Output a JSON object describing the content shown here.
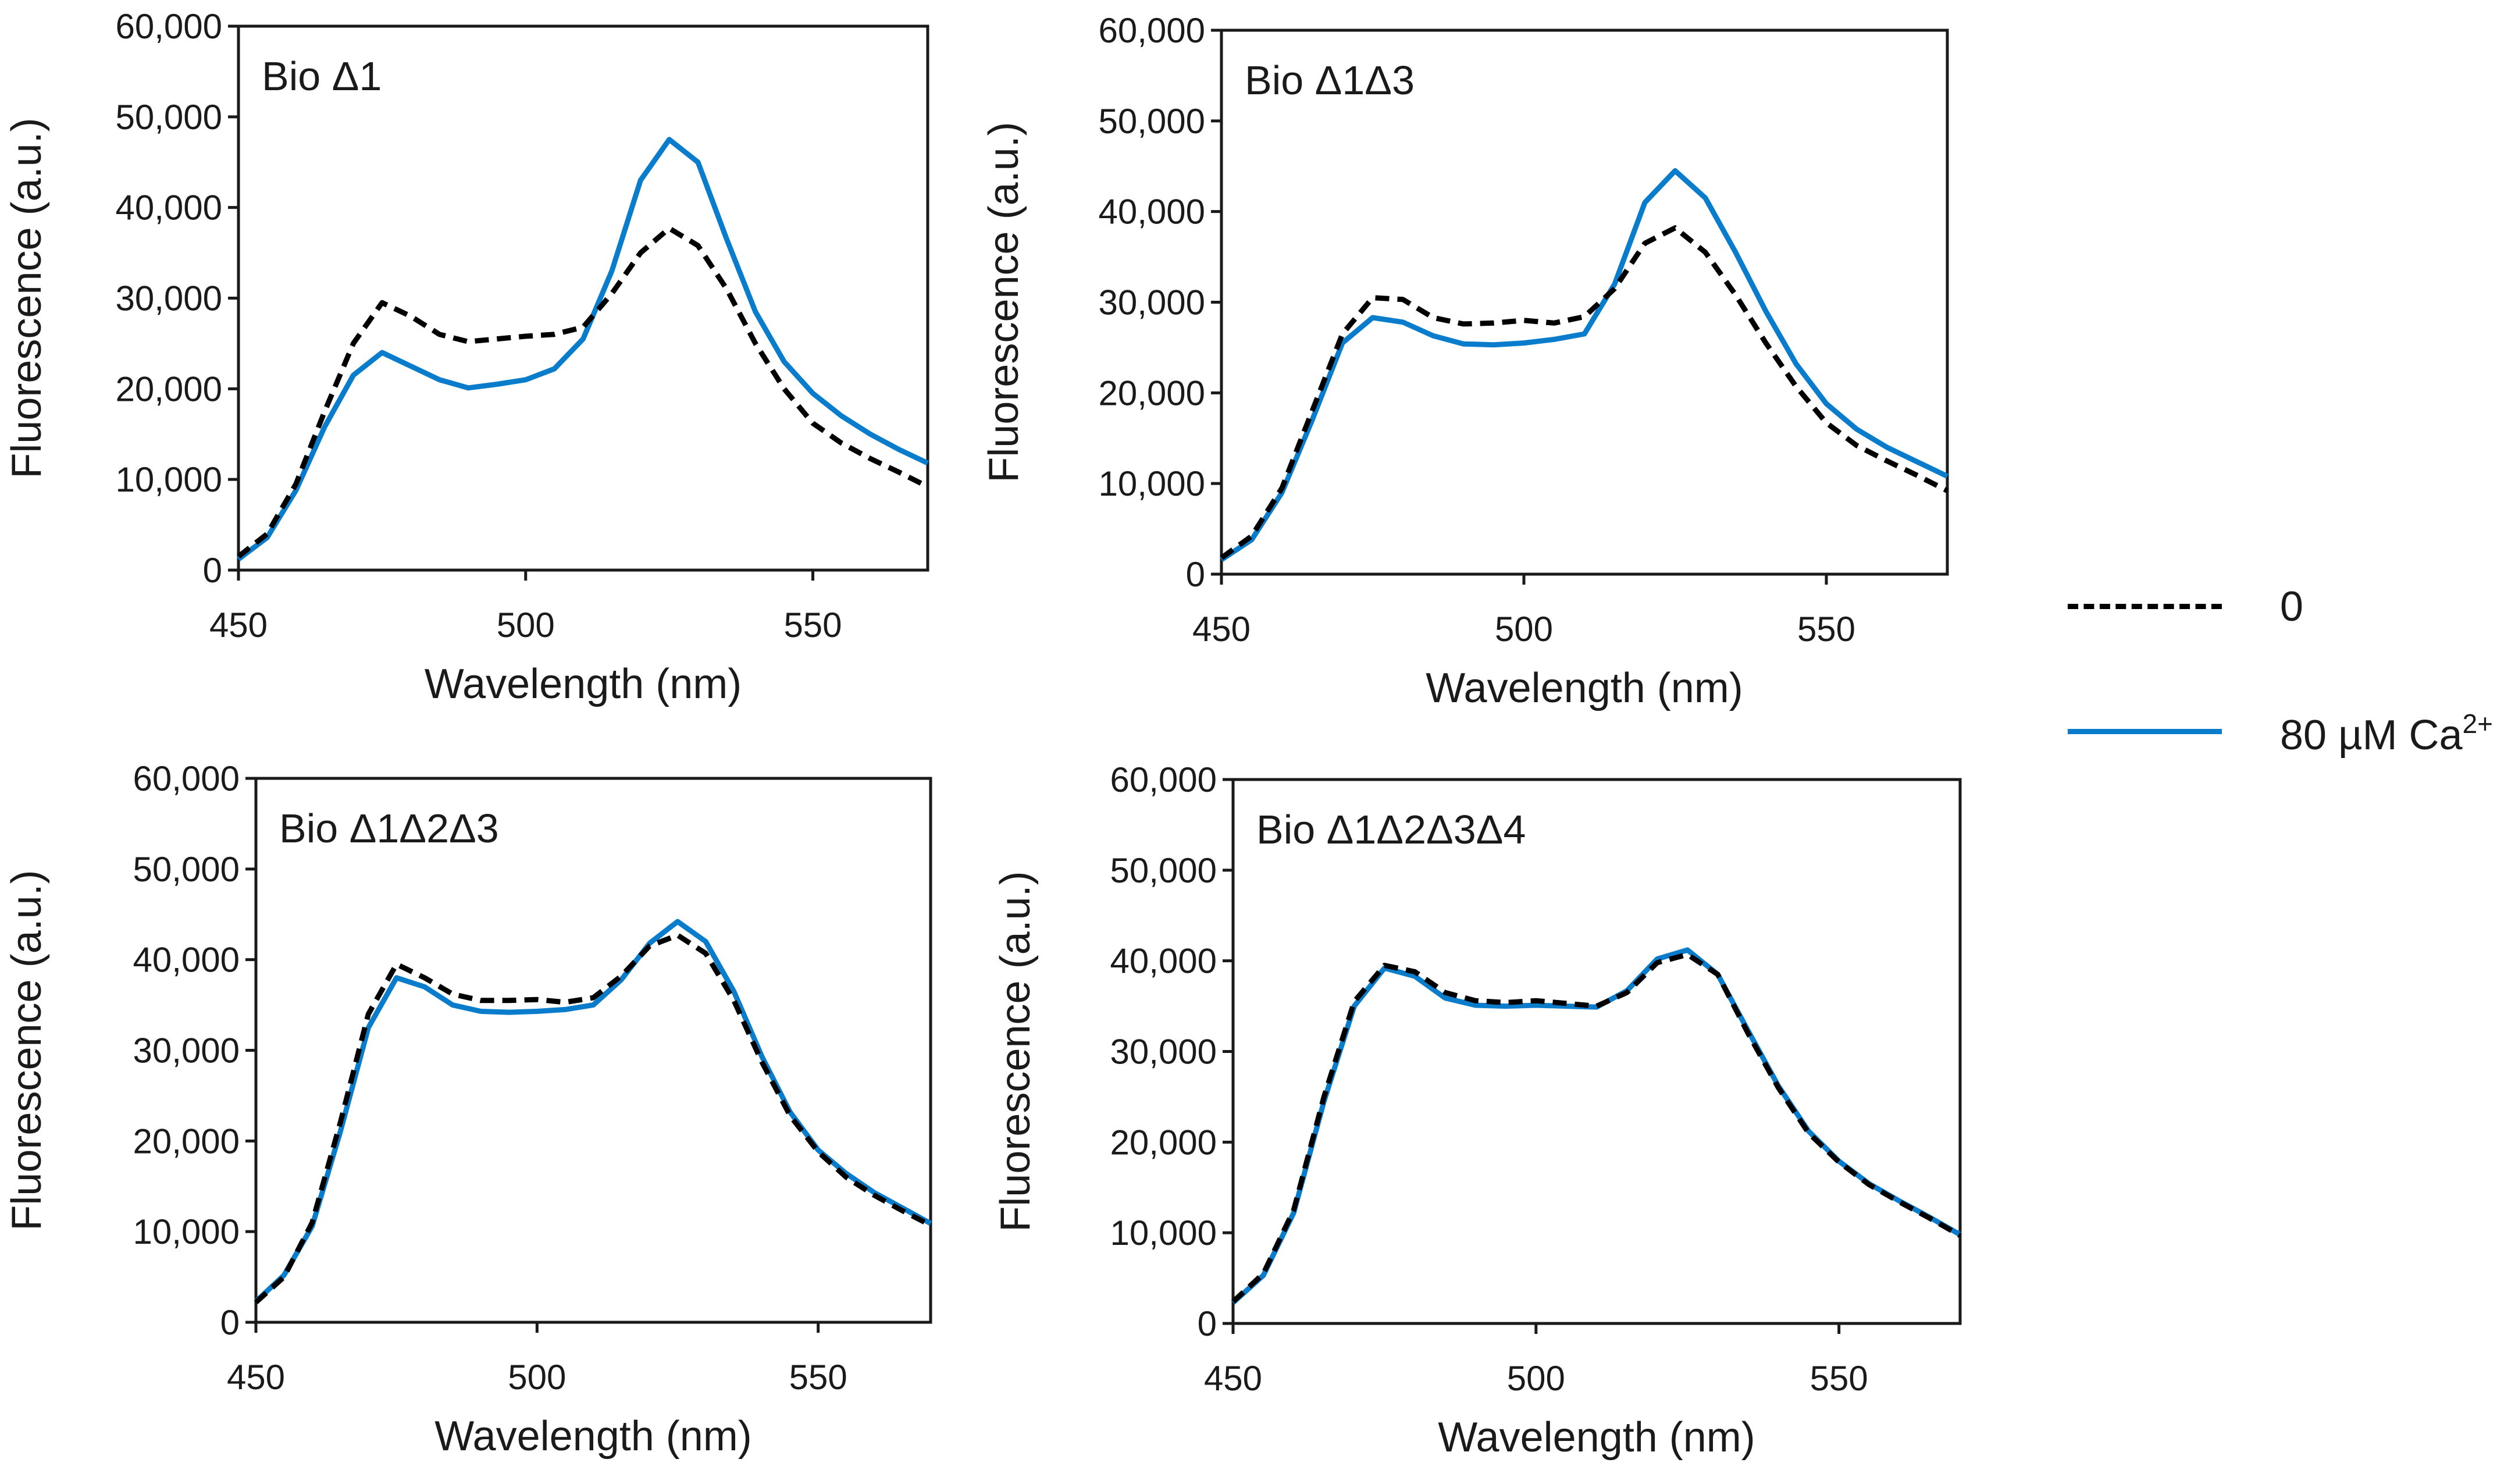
{
  "colors": {
    "solid_series": "#0a7ccc",
    "dashed_series": "#000000",
    "axis": "#1a1a1a"
  },
  "legend": {
    "entries": [
      {
        "label": "0",
        "style": "dashed"
      },
      {
        "label_main": "80 µM Ca",
        "label_sup": "2+",
        "style": "solid"
      }
    ]
  },
  "chart_data": [
    {
      "type": "line",
      "title": "Bio Δ1",
      "xlabel": "Wavelength (nm)",
      "ylabel": "Fluorescence  (a.u.)",
      "xlim": [
        450,
        570
      ],
      "ylim": [
        0,
        60000
      ],
      "xticks": [
        450,
        500,
        550
      ],
      "xtick_labels": [
        "450",
        "500",
        "550"
      ],
      "yticks": [
        0,
        10000,
        20000,
        30000,
        40000,
        50000,
        60000
      ],
      "ytick_labels": [
        "0",
        "10,000",
        "20,000",
        "30,000",
        "40,000",
        "50,000",
        "60,000"
      ],
      "x": [
        450,
        455,
        460,
        465,
        470,
        475,
        480,
        485,
        490,
        495,
        500,
        505,
        510,
        515,
        520,
        525,
        530,
        535,
        540,
        545,
        550,
        555,
        560,
        565,
        570
      ],
      "series": [
        {
          "name": "0",
          "style": "dashed",
          "values": [
            1500,
            4000,
            9500,
            17500,
            25000,
            29500,
            28000,
            26000,
            25200,
            25500,
            25800,
            26000,
            26800,
            30500,
            35000,
            37700,
            35800,
            31000,
            25000,
            20000,
            16200,
            14000,
            12300,
            10800,
            9200
          ]
        },
        {
          "name": "80 µM Ca2+",
          "style": "solid",
          "values": [
            1200,
            3600,
            8800,
            15800,
            21500,
            24000,
            22500,
            21000,
            20100,
            20500,
            21000,
            22200,
            25500,
            33000,
            43000,
            47500,
            45000,
            36500,
            28500,
            23000,
            19500,
            17000,
            15000,
            13300,
            11800
          ]
        }
      ]
    },
    {
      "type": "line",
      "title": "Bio Δ1Δ3",
      "xlabel": "Wavelength (nm)",
      "ylabel": "Fluorescence  (a.u.)",
      "xlim": [
        450,
        570
      ],
      "ylim": [
        0,
        60000
      ],
      "xticks": [
        450,
        500,
        550
      ],
      "xtick_labels": [
        "450",
        "500",
        "550"
      ],
      "yticks": [
        0,
        10000,
        20000,
        30000,
        40000,
        50000,
        60000
      ],
      "ytick_labels": [
        "0",
        "10,000",
        "20,000",
        "30,000",
        "40,000",
        "50,000",
        "60,000"
      ],
      "x": [
        450,
        455,
        460,
        465,
        470,
        475,
        480,
        485,
        490,
        495,
        500,
        505,
        510,
        515,
        520,
        525,
        530,
        535,
        540,
        545,
        550,
        555,
        560,
        565,
        570
      ],
      "series": [
        {
          "name": "0",
          "style": "dashed",
          "values": [
            1800,
            4200,
            9500,
            18000,
            26500,
            30500,
            30300,
            28300,
            27600,
            27700,
            28000,
            27700,
            28400,
            31500,
            36500,
            38200,
            35500,
            30800,
            25500,
            20700,
            16700,
            14200,
            12500,
            10900,
            9200
          ]
        },
        {
          "name": "80 µM Ca2+",
          "style": "solid",
          "values": [
            1600,
            3800,
            9000,
            17000,
            25500,
            28300,
            27800,
            26300,
            25400,
            25300,
            25500,
            25900,
            26500,
            32000,
            41000,
            44500,
            41500,
            35500,
            29000,
            23200,
            18800,
            16000,
            14000,
            12400,
            10800
          ]
        }
      ]
    },
    {
      "type": "line",
      "title": "Bio Δ1Δ2Δ3",
      "xlabel": "Wavelength (nm)",
      "ylabel": "Fluorescence  (a.u.)",
      "xlim": [
        450,
        570
      ],
      "ylim": [
        0,
        60000
      ],
      "xticks": [
        450,
        500,
        550
      ],
      "xtick_labels": [
        "450",
        "500",
        "550"
      ],
      "yticks": [
        0,
        10000,
        20000,
        30000,
        40000,
        50000,
        60000
      ],
      "ytick_labels": [
        "0",
        "10,000",
        "20,000",
        "30,000",
        "40,000",
        "50,000",
        "60,000"
      ],
      "x": [
        450,
        455,
        460,
        465,
        470,
        475,
        480,
        485,
        490,
        495,
        500,
        505,
        510,
        515,
        520,
        525,
        530,
        535,
        540,
        545,
        550,
        555,
        560,
        565,
        570
      ],
      "series": [
        {
          "name": "0",
          "style": "dashed",
          "values": [
            2200,
            5000,
            11000,
            22000,
            34000,
            39500,
            38000,
            36200,
            35500,
            35500,
            35600,
            35300,
            35800,
            38200,
            41500,
            42700,
            40700,
            35500,
            28700,
            22800,
            18800,
            16000,
            14000,
            12300,
            10700
          ]
        },
        {
          "name": "80 µM Ca2+",
          "style": "solid",
          "values": [
            2300,
            5200,
            10600,
            21000,
            32500,
            38000,
            37000,
            35000,
            34300,
            34200,
            34300,
            34500,
            35000,
            37800,
            41800,
            44200,
            42000,
            36500,
            29300,
            23200,
            19000,
            16400,
            14300,
            12600,
            10900
          ]
        }
      ]
    },
    {
      "type": "line",
      "title": "Bio Δ1Δ2Δ3Δ4",
      "xlabel": "Wavelength (nm)",
      "ylabel": "Fluorescence  (a.u.)",
      "xlim": [
        450,
        570
      ],
      "ylim": [
        0,
        60000
      ],
      "xticks": [
        450,
        500,
        550
      ],
      "xtick_labels": [
        "450",
        "500",
        "550"
      ],
      "yticks": [
        0,
        10000,
        20000,
        30000,
        40000,
        50000,
        60000
      ],
      "ytick_labels": [
        "0",
        "10,000",
        "20,000",
        "30,000",
        "40,000",
        "50,000",
        "60,000"
      ],
      "x": [
        450,
        455,
        460,
        465,
        470,
        475,
        480,
        485,
        490,
        495,
        500,
        505,
        510,
        515,
        520,
        525,
        530,
        535,
        540,
        545,
        550,
        555,
        560,
        565,
        570
      ],
      "series": [
        {
          "name": "0",
          "style": "dashed",
          "values": [
            2400,
            5500,
            12500,
            25000,
            35500,
            39500,
            38800,
            36500,
            35600,
            35400,
            35600,
            35300,
            35000,
            36500,
            39800,
            40700,
            38500,
            32000,
            26000,
            21000,
            17800,
            15300,
            13400,
            11600,
            9700
          ]
        },
        {
          "name": "80 µM Ca2+",
          "style": "solid",
          "values": [
            2300,
            5300,
            12200,
            24500,
            35000,
            39200,
            38300,
            35900,
            35100,
            35000,
            35100,
            35000,
            34900,
            36700,
            40200,
            41200,
            38500,
            32300,
            26200,
            21200,
            17900,
            15400,
            13500,
            11700,
            9800
          ]
        }
      ]
    }
  ]
}
